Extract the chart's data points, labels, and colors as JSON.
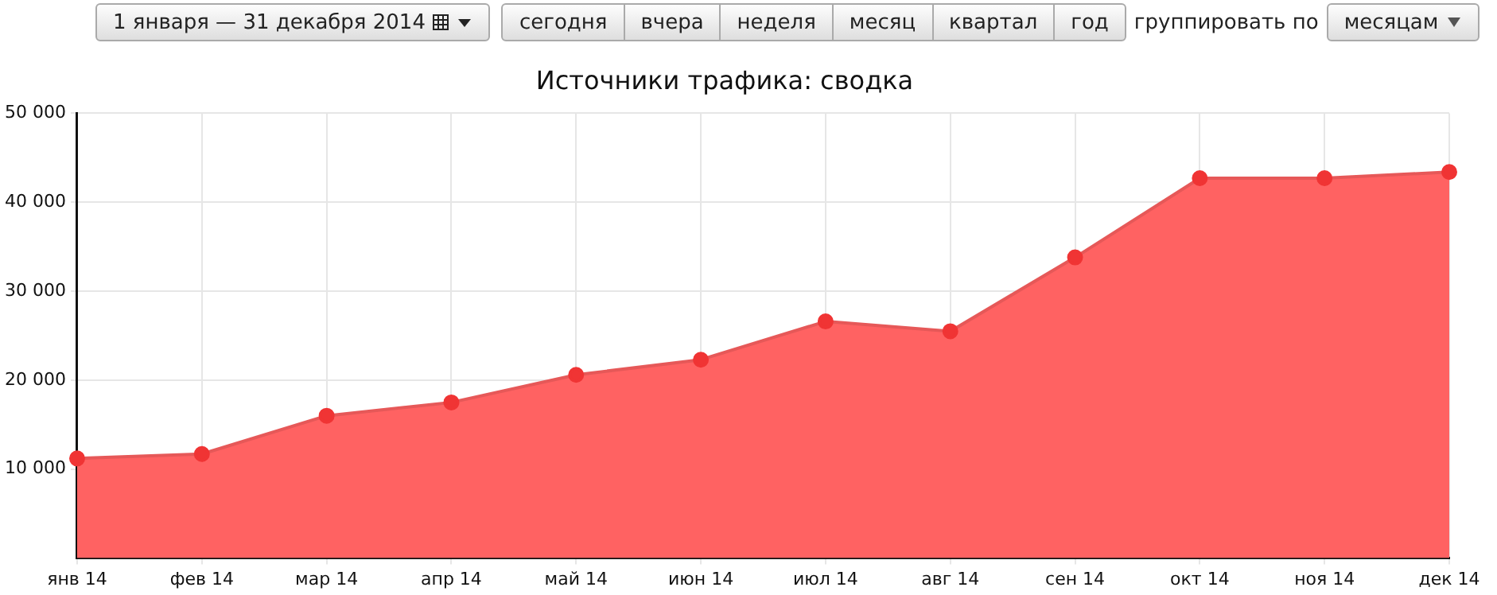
{
  "chart_data": {
    "type": "area",
    "title": "Источники трафика: сводка",
    "categories": [
      "янв 14",
      "фев 14",
      "мар 14",
      "апр 14",
      "май 14",
      "июн 14",
      "июл 14",
      "авг 14",
      "сен 14",
      "окт 14",
      "ноя 14",
      "дек 14"
    ],
    "series": [
      {
        "color": "#ff6262",
        "values": [
          11200,
          11700,
          16000,
          17500,
          20600,
          22300,
          26600,
          25500,
          33800,
          42700,
          42700,
          43400
        ]
      }
    ],
    "ylim": [
      0,
      50000
    ],
    "yticks": [
      {
        "value": 10000,
        "label": "10 000"
      },
      {
        "value": 20000,
        "label": "20 000"
      },
      {
        "value": 30000,
        "label": "30 000"
      },
      {
        "value": 40000,
        "label": "40 000"
      },
      {
        "value": 50000,
        "label": "50 000"
      }
    ],
    "grid": true,
    "marker": "circle",
    "legend": false,
    "annotations": [
      "1 января — 31 декабря 2014",
      "сегодня",
      "вчера",
      "неделя",
      "месяц",
      "квартал",
      "год",
      "группировать по",
      "месяцам"
    ]
  }
}
